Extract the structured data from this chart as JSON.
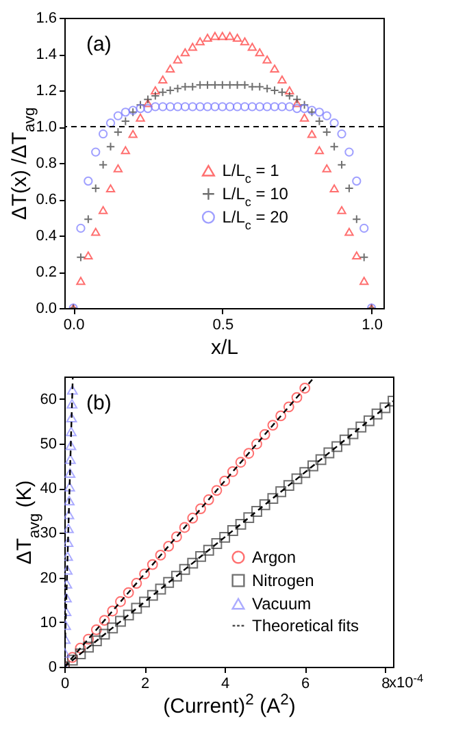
{
  "chart_data": [
    {
      "type": "scatter",
      "xlabel": "x/L",
      "ylabel": "ΔT(x) /ΔT$_{avg}$",
      "annotations": [
        "(a)"
      ],
      "x": [
        0,
        0.025,
        0.05,
        0.075,
        0.1,
        0.125,
        0.15,
        0.175,
        0.2,
        0.225,
        0.25,
        0.275,
        0.3,
        0.325,
        0.35,
        0.375,
        0.4,
        0.425,
        0.45,
        0.475,
        0.5,
        0.525,
        0.55,
        0.575,
        0.6,
        0.625,
        0.65,
        0.675,
        0.7,
        0.725,
        0.75,
        0.775,
        0.8,
        0.825,
        0.85,
        0.875,
        0.9,
        0.925,
        0.95,
        0.975,
        1
      ],
      "xlim": [
        -0.03,
        1.04
      ],
      "xticks": [
        {
          "value": 0,
          "label": "0.0"
        },
        0.5,
        {
          "value": 1,
          "label": "1.0"
        }
      ],
      "ylim": [
        0,
        1.6
      ],
      "yticks": [
        {
          "value": 0,
          "label": "0.0"
        },
        0.2,
        0.4,
        0.6,
        0.8,
        {
          "value": 1,
          "label": "1.0"
        },
        1.2,
        1.4,
        1.6
      ],
      "legend": "center",
      "ref_lines": [
        {
          "axis": "y",
          "value": 1,
          "color": "#000000",
          "line_style": "dashed"
        }
      ],
      "series": [
        {
          "name": "L/L$_{c}$ = 1",
          "color": "#ff3333",
          "marker": "triangle",
          "values": [
            0,
            0.15,
            0.29,
            0.42,
            0.54,
            0.66,
            0.77,
            0.87,
            0.96,
            1.05,
            1.13,
            1.2,
            1.26,
            1.32,
            1.37,
            1.41,
            1.44,
            1.47,
            1.49,
            1.5,
            1.5,
            1.5,
            1.49,
            1.47,
            1.44,
            1.41,
            1.37,
            1.32,
            1.26,
            1.2,
            1.13,
            1.05,
            0.96,
            0.87,
            0.77,
            0.66,
            0.54,
            0.42,
            0.29,
            0.15,
            0
          ]
        },
        {
          "name": "L/L$_{c}$ = 10",
          "color": "#333333",
          "marker": "cross",
          "values": [
            0,
            0.28,
            0.49,
            0.66,
            0.79,
            0.89,
            0.97,
            1.03,
            1.08,
            1.12,
            1.15,
            1.17,
            1.19,
            1.2,
            1.21,
            1.22,
            1.22,
            1.23,
            1.23,
            1.23,
            1.23,
            1.23,
            1.23,
            1.23,
            1.22,
            1.22,
            1.21,
            1.2,
            1.19,
            1.17,
            1.15,
            1.12,
            1.08,
            1.03,
            0.97,
            0.89,
            0.79,
            0.66,
            0.49,
            0.28,
            0
          ]
        },
        {
          "name": "L/L$_{c}$ = 20",
          "color": "#7777ff",
          "marker": "circle",
          "values": [
            0,
            0.44,
            0.7,
            0.86,
            0.96,
            1.02,
            1.06,
            1.08,
            1.09,
            1.1,
            1.1,
            1.11,
            1.11,
            1.11,
            1.11,
            1.11,
            1.11,
            1.11,
            1.11,
            1.11,
            1.11,
            1.11,
            1.11,
            1.11,
            1.11,
            1.11,
            1.11,
            1.11,
            1.11,
            1.11,
            1.1,
            1.1,
            1.09,
            1.08,
            1.06,
            1.02,
            0.96,
            0.86,
            0.7,
            0.44,
            0
          ]
        }
      ]
    },
    {
      "type": "scatter",
      "xlabel": "(Current)$^{2}$ (A$^{2}$)",
      "ylabel": "ΔT$_{avg}$ (K)",
      "annotations": [
        "(b)",
        "x10$^{-4}$"
      ],
      "xlim": [
        0,
        8.2
      ],
      "xticks": [
        0,
        2,
        4,
        6,
        8
      ],
      "ylim": [
        0,
        65
      ],
      "yticks": [
        0,
        10,
        20,
        30,
        40,
        50,
        60
      ],
      "legend": "bottom right",
      "series": [
        {
          "name": "Argon",
          "color": "#ff3333",
          "marker": "circle",
          "x": [
            0,
            0.2,
            0.4,
            0.6,
            0.8,
            1,
            1.2,
            1.4,
            1.6,
            1.8,
            2,
            2.2,
            2.4,
            2.6,
            2.8,
            3,
            3.2,
            3.4,
            3.6,
            3.8,
            4,
            4.2,
            4.4,
            4.6,
            4.8,
            5,
            5.2,
            5.4,
            5.6,
            5.8,
            6
          ],
          "values": [
            0,
            2.1,
            4.2,
            6.2,
            8.3,
            10.4,
            12.5,
            14.6,
            16.6,
            18.7,
            20.8,
            22.9,
            25,
            27,
            29.1,
            31.2,
            33.3,
            35.4,
            37.4,
            39.5,
            41.6,
            43.7,
            45.8,
            47.8,
            49.9,
            52,
            54.1,
            56.2,
            58.2,
            60.3,
            62.4
          ]
        },
        {
          "name": "Nitrogen",
          "color": "#333333",
          "marker": "square",
          "x": [
            0,
            0.2,
            0.4,
            0.6,
            0.8,
            1,
            1.2,
            1.4,
            1.6,
            1.8,
            2,
            2.2,
            2.4,
            2.6,
            2.8,
            3,
            3.2,
            3.4,
            3.6,
            3.8,
            4,
            4.2,
            4.4,
            4.6,
            4.8,
            5,
            5.2,
            5.4,
            5.6,
            5.8,
            6,
            6.2,
            6.4,
            6.6,
            6.8,
            7,
            7.2,
            7.4,
            7.6,
            7.8,
            8,
            8.2
          ],
          "values": [
            0,
            1.5,
            2.9,
            4.4,
            5.8,
            7.3,
            8.7,
            10.2,
            11.6,
            13.1,
            14.5,
            16,
            17.4,
            18.9,
            20.3,
            21.8,
            23.2,
            24.7,
            26.1,
            27.6,
            29,
            30.5,
            31.9,
            33.4,
            34.8,
            36.3,
            37.7,
            39.2,
            40.6,
            42.1,
            43.5,
            45,
            46.4,
            47.9,
            49.3,
            50.8,
            52.2,
            53.7,
            55.1,
            56.6,
            58,
            59.5
          ]
        },
        {
          "name": "Vacuum",
          "color": "#8888ff",
          "marker": "triangle",
          "x": [
            0,
            0.01,
            0.02,
            0.03,
            0.04,
            0.05,
            0.06,
            0.07,
            0.08,
            0.09,
            0.1,
            0.11,
            0.12,
            0.13,
            0.14,
            0.15,
            0.16,
            0.17,
            0.18,
            0.19,
            0.2
          ],
          "values": [
            0,
            3.1,
            6.2,
            9.3,
            12.4,
            15.5,
            18.6,
            21.7,
            24.8,
            27.9,
            31,
            34.1,
            37.2,
            40.3,
            43.4,
            46.5,
            49.6,
            52.7,
            55.8,
            58.9,
            62
          ]
        },
        {
          "name": "Theoretical fits",
          "type": "line",
          "line_style": "dashed",
          "color": "#000000",
          "x": [
            0,
            6.25
          ],
          "values": [
            0,
            65
          ]
        },
        {
          "type": "line",
          "line_style": "dashed",
          "color": "#000000",
          "x": [
            0,
            8.2
          ],
          "values": [
            0,
            59.5
          ]
        },
        {
          "type": "line",
          "line_style": "dashed",
          "color": "#000000",
          "x": [
            0,
            0.21
          ],
          "values": [
            0,
            65
          ]
        }
      ]
    }
  ]
}
